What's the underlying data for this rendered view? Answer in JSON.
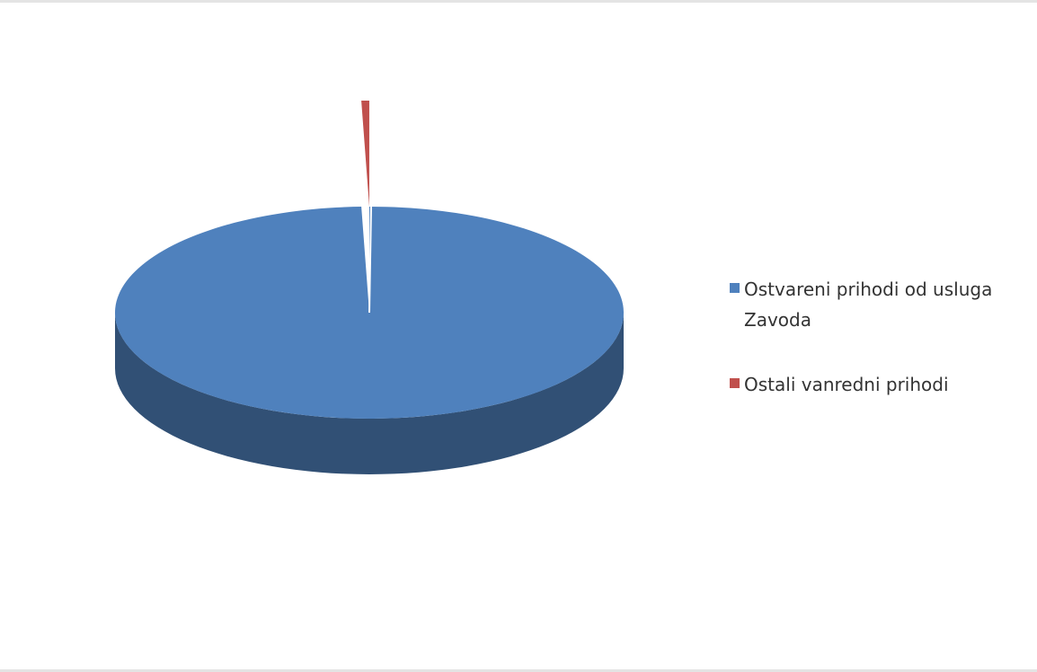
{
  "chart_data": {
    "type": "pie",
    "style": "3d",
    "title": "",
    "legend_position": "right",
    "slices": [
      {
        "label": "Ostvareni prihodi od usluga Zavoda",
        "value": 99.5,
        "color": "#4f81bd"
      },
      {
        "label": "Ostali vanredni prihodi",
        "value": 0.5,
        "color": "#c0504d",
        "exploded": true
      }
    ]
  },
  "legend": {
    "items": [
      {
        "label": "Ostvareni prihodi od usluga Zavoda",
        "color": "#4f81bd"
      },
      {
        "label": "Ostali vanredni prihodi",
        "color": "#c0504d"
      }
    ]
  }
}
